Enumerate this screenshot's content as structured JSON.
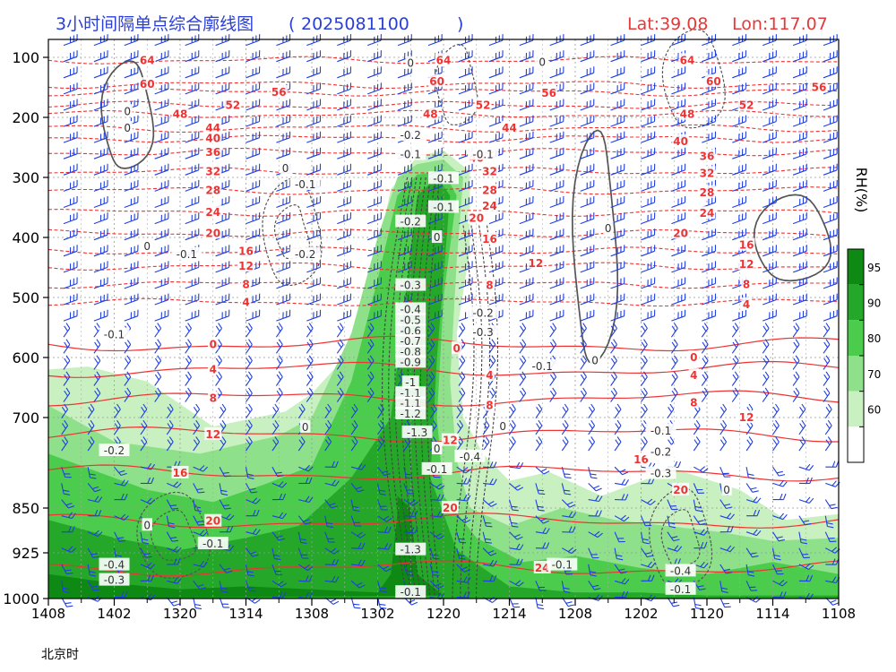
{
  "chart_data": {
    "type": "contour",
    "title": "3小时间隔单点综合廓线图",
    "run_time": "2025081100",
    "location": {
      "lat": "Lat:39.08",
      "lon": "Lon:117.07"
    },
    "xlabel": "北京时",
    "x_ticks": [
      "1408",
      "1402",
      "1320",
      "1314",
      "1308",
      "1302",
      "1220",
      "1214",
      "1208",
      "1202",
      "1120",
      "1114",
      "1108"
    ],
    "y_ticks": [
      100,
      200,
      300,
      400,
      500,
      600,
      700,
      850,
      925,
      1000
    ],
    "ylim": [
      1000,
      100
    ],
    "colorbar": {
      "label": "RH(%)",
      "levels": [
        60,
        70,
        80,
        90,
        95
      ],
      "colors": [
        "#ffffff",
        "#c8f0c0",
        "#8fe08a",
        "#4ccc4c",
        "#25a829",
        "#0e8a14"
      ]
    },
    "temperature_labels": [
      {
        "x": 1.5,
        "p": 105,
        "v": "64"
      },
      {
        "x": 1.5,
        "p": 145,
        "v": "60"
      },
      {
        "x": 3.5,
        "p": 158,
        "v": "56"
      },
      {
        "x": 2.8,
        "p": 180,
        "v": "52"
      },
      {
        "x": 2.0,
        "p": 195,
        "v": "48"
      },
      {
        "x": 2.5,
        "p": 218,
        "v": "44"
      },
      {
        "x": 2.5,
        "p": 235,
        "v": "40"
      },
      {
        "x": 2.5,
        "p": 258,
        "v": "36"
      },
      {
        "x": 2.5,
        "p": 290,
        "v": "32"
      },
      {
        "x": 2.5,
        "p": 322,
        "v": "28"
      },
      {
        "x": 2.5,
        "p": 358,
        "v": "24"
      },
      {
        "x": 2.5,
        "p": 393,
        "v": "20"
      },
      {
        "x": 3.0,
        "p": 423,
        "v": "16"
      },
      {
        "x": 3.0,
        "p": 448,
        "v": "12"
      },
      {
        "x": 3.0,
        "p": 478,
        "v": "8"
      },
      {
        "x": 3.0,
        "p": 508,
        "v": "4"
      },
      {
        "x": 2.5,
        "p": 578,
        "v": "0"
      },
      {
        "x": 2.5,
        "p": 620,
        "v": "4"
      },
      {
        "x": 2.5,
        "p": 668,
        "v": "8"
      },
      {
        "x": 2.5,
        "p": 728,
        "v": "12"
      },
      {
        "x": 2.0,
        "p": 792,
        "v": "16"
      },
      {
        "x": 2.5,
        "p": 872,
        "v": "20"
      },
      {
        "x": 7.5,
        "p": 950,
        "v": "24"
      },
      {
        "x": 6.0,
        "p": 105,
        "v": "64"
      },
      {
        "x": 5.9,
        "p": 140,
        "v": "60"
      },
      {
        "x": 5.8,
        "p": 195,
        "v": "48"
      },
      {
        "x": 6.6,
        "p": 180,
        "v": "52"
      },
      {
        "x": 6.5,
        "p": 268,
        "v": "40"
      },
      {
        "x": 6.7,
        "p": 290,
        "v": "32"
      },
      {
        "x": 6.7,
        "p": 322,
        "v": "28"
      },
      {
        "x": 6.7,
        "p": 348,
        "v": "24"
      },
      {
        "x": 6.5,
        "p": 368,
        "v": "20"
      },
      {
        "x": 6.7,
        "p": 403,
        "v": "16"
      },
      {
        "x": 7.4,
        "p": 443,
        "v": "12"
      },
      {
        "x": 6.7,
        "p": 480,
        "v": "8"
      },
      {
        "x": 6.2,
        "p": 585,
        "v": "0"
      },
      {
        "x": 6.7,
        "p": 630,
        "v": "4"
      },
      {
        "x": 6.7,
        "p": 680,
        "v": "8"
      },
      {
        "x": 6.1,
        "p": 738,
        "v": "12"
      },
      {
        "x": 6.1,
        "p": 850,
        "v": "20"
      },
      {
        "x": 7.0,
        "p": 218,
        "v": "44"
      },
      {
        "x": 7.6,
        "p": 160,
        "v": "56"
      },
      {
        "x": 9.7,
        "p": 105,
        "v": "64"
      },
      {
        "x": 10.1,
        "p": 140,
        "v": "60"
      },
      {
        "x": 10.6,
        "p": 180,
        "v": "52"
      },
      {
        "x": 9.7,
        "p": 195,
        "v": "48"
      },
      {
        "x": 9.6,
        "p": 240,
        "v": "40"
      },
      {
        "x": 10.0,
        "p": 265,
        "v": "36"
      },
      {
        "x": 10.0,
        "p": 293,
        "v": "32"
      },
      {
        "x": 10.0,
        "p": 325,
        "v": "28"
      },
      {
        "x": 10.0,
        "p": 360,
        "v": "24"
      },
      {
        "x": 9.6,
        "p": 393,
        "v": "20"
      },
      {
        "x": 10.6,
        "p": 413,
        "v": "16"
      },
      {
        "x": 10.6,
        "p": 445,
        "v": "12"
      },
      {
        "x": 10.6,
        "p": 478,
        "v": "8"
      },
      {
        "x": 10.6,
        "p": 512,
        "v": "4"
      },
      {
        "x": 9.8,
        "p": 600,
        "v": "0"
      },
      {
        "x": 9.8,
        "p": 630,
        "v": "4"
      },
      {
        "x": 9.8,
        "p": 675,
        "v": "8"
      },
      {
        "x": 10.6,
        "p": 700,
        "v": "12"
      },
      {
        "x": 9.0,
        "p": 770,
        "v": "16"
      },
      {
        "x": 9.6,
        "p": 820,
        "v": "20"
      },
      {
        "x": 11.7,
        "p": 150,
        "v": "56"
      }
    ],
    "omega_labels": [
      {
        "x": 1.2,
        "p": 190,
        "v": "0"
      },
      {
        "x": 1.2,
        "p": 218,
        "v": "0"
      },
      {
        "x": 3.6,
        "p": 285,
        "v": "0"
      },
      {
        "x": 3.9,
        "p": 312,
        "v": "-0.1"
      },
      {
        "x": 1.5,
        "p": 415,
        "v": "0"
      },
      {
        "x": 2.1,
        "p": 428,
        "v": "-0.1"
      },
      {
        "x": 3.9,
        "p": 428,
        "v": "-0.2"
      },
      {
        "x": 1.0,
        "p": 562,
        "v": "-0.1"
      },
      {
        "x": 1.0,
        "p": 755,
        "v": "-0.2"
      },
      {
        "x": 3.9,
        "p": 716,
        "v": "0"
      },
      {
        "x": 1.5,
        "p": 879,
        "v": "0"
      },
      {
        "x": 2.5,
        "p": 910,
        "v": "-0.1"
      },
      {
        "x": 1.0,
        "p": 945,
        "v": "-0.4"
      },
      {
        "x": 1.0,
        "p": 970,
        "v": "-0.3"
      },
      {
        "x": 5.5,
        "p": 110,
        "v": "0"
      },
      {
        "x": 5.5,
        "p": 230,
        "v": "-0.2"
      },
      {
        "x": 5.5,
        "p": 262,
        "v": "-0.1"
      },
      {
        "x": 5.5,
        "p": 374,
        "v": "-0.2"
      },
      {
        "x": 6.0,
        "p": 350,
        "v": "-0.1"
      },
      {
        "x": 5.9,
        "p": 400,
        "v": "0"
      },
      {
        "x": 6.6,
        "p": 262,
        "v": "-0.1"
      },
      {
        "x": 6.6,
        "p": 526,
        "v": "-0.2"
      },
      {
        "x": 6.6,
        "p": 558,
        "v": "-0.3"
      },
      {
        "x": 5.5,
        "p": 480,
        "v": "-0.3"
      },
      {
        "x": 5.5,
        "p": 520,
        "v": "-0.4"
      },
      {
        "x": 5.5,
        "p": 538,
        "v": "-0.5"
      },
      {
        "x": 5.5,
        "p": 556,
        "v": "-0.6"
      },
      {
        "x": 5.5,
        "p": 573,
        "v": "-0.7"
      },
      {
        "x": 5.5,
        "p": 591,
        "v": "-0.8"
      },
      {
        "x": 5.5,
        "p": 608,
        "v": "-0.9"
      },
      {
        "x": 5.5,
        "p": 642,
        "v": "-1"
      },
      {
        "x": 5.5,
        "p": 660,
        "v": "-1.1"
      },
      {
        "x": 5.5,
        "p": 677,
        "v": "-1.1"
      },
      {
        "x": 5.5,
        "p": 694,
        "v": "-1.2"
      },
      {
        "x": 5.6,
        "p": 725,
        "v": "-1.3"
      },
      {
        "x": 5.9,
        "p": 752,
        "v": "0"
      },
      {
        "x": 5.9,
        "p": 786,
        "v": "-0.1"
      },
      {
        "x": 6.4,
        "p": 765,
        "v": "-0.4"
      },
      {
        "x": 6.9,
        "p": 715,
        "v": "0"
      },
      {
        "x": 5.5,
        "p": 920,
        "v": "-1.3"
      },
      {
        "x": 5.5,
        "p": 990,
        "v": "-0.1"
      },
      {
        "x": 7.5,
        "p": 108,
        "v": "0"
      },
      {
        "x": 7.5,
        "p": 615,
        "v": "-0.1"
      },
      {
        "x": 8.3,
        "p": 605,
        "v": "0"
      },
      {
        "x": 8.5,
        "p": 385,
        "v": "0"
      },
      {
        "x": 7.8,
        "p": 945,
        "v": "-0.1"
      },
      {
        "x": 9.3,
        "p": 722,
        "v": "-0.1"
      },
      {
        "x": 9.3,
        "p": 757,
        "v": "-0.2"
      },
      {
        "x": 9.3,
        "p": 793,
        "v": "-0.3"
      },
      {
        "x": 10.3,
        "p": 820,
        "v": "0"
      },
      {
        "x": 9.6,
        "p": 955,
        "v": "-0.4"
      },
      {
        "x": 9.6,
        "p": 985,
        "v": "-0.1"
      },
      {
        "x": 6.0,
        "p": 302,
        "v": "-0.1"
      }
    ],
    "rh_regions": [
      {
        "level": 60,
        "poly": [
          [
            0,
            620
          ],
          [
            0.6,
            615
          ],
          [
            1.5,
            640
          ],
          [
            2.5,
            715
          ],
          [
            3.6,
            690
          ],
          [
            4.0,
            660
          ],
          [
            4.5,
            600
          ],
          [
            4.9,
            470
          ],
          [
            5.2,
            320
          ],
          [
            5.6,
            265
          ],
          [
            6.0,
            255
          ],
          [
            6.4,
            290
          ],
          [
            6.4,
            420
          ],
          [
            6.2,
            560
          ],
          [
            6.3,
            700
          ],
          [
            6.6,
            760
          ],
          [
            7.0,
            805
          ],
          [
            7.6,
            790
          ],
          [
            8.4,
            830
          ],
          [
            9.5,
            785
          ],
          [
            10.5,
            820
          ],
          [
            11.2,
            870
          ],
          [
            12.0,
            860
          ],
          [
            12.0,
            1000
          ],
          [
            0,
            1000
          ]
        ]
      },
      {
        "level": 70,
        "poly": [
          [
            0,
            680
          ],
          [
            1.0,
            740
          ],
          [
            2.3,
            760
          ],
          [
            3.5,
            730
          ],
          [
            4.0,
            700
          ],
          [
            4.6,
            560
          ],
          [
            5.0,
            400
          ],
          [
            5.3,
            300
          ],
          [
            5.6,
            278
          ],
          [
            6.0,
            270
          ],
          [
            6.3,
            300
          ],
          [
            6.2,
            440
          ],
          [
            6.1,
            640
          ],
          [
            6.2,
            770
          ],
          [
            6.4,
            850
          ],
          [
            7.0,
            880
          ],
          [
            7.8,
            850
          ],
          [
            8.6,
            870
          ],
          [
            9.4,
            880
          ],
          [
            10.2,
            890
          ],
          [
            11.0,
            905
          ],
          [
            12.0,
            900
          ],
          [
            12.0,
            1000
          ],
          [
            0,
            1000
          ]
        ]
      },
      {
        "level": 80,
        "poly": [
          [
            0,
            760
          ],
          [
            1.5,
            820
          ],
          [
            2.5,
            840
          ],
          [
            3.3,
            810
          ],
          [
            4.0,
            780
          ],
          [
            4.6,
            640
          ],
          [
            5.0,
            470
          ],
          [
            5.3,
            330
          ],
          [
            5.6,
            295
          ],
          [
            6.0,
            290
          ],
          [
            6.2,
            330
          ],
          [
            6.0,
            500
          ],
          [
            5.9,
            700
          ],
          [
            6.0,
            830
          ],
          [
            6.5,
            900
          ],
          [
            7.2,
            940
          ],
          [
            8.0,
            930
          ],
          [
            9.0,
            950
          ],
          [
            10.0,
            960
          ],
          [
            11.0,
            940
          ],
          [
            12.0,
            960
          ],
          [
            12.0,
            1000
          ],
          [
            0,
            1000
          ]
        ]
      },
      {
        "level": 90,
        "poly": [
          [
            0,
            870
          ],
          [
            1.0,
            900
          ],
          [
            2.0,
            920
          ],
          [
            3.0,
            900
          ],
          [
            3.8,
            880
          ],
          [
            4.6,
            800
          ],
          [
            5.2,
            700
          ],
          [
            5.4,
            520
          ],
          [
            5.6,
            330
          ],
          [
            5.9,
            300
          ],
          [
            6.1,
            330
          ],
          [
            5.9,
            600
          ],
          [
            5.8,
            800
          ],
          [
            6.2,
            920
          ],
          [
            7.0,
            980
          ],
          [
            8.0,
            990
          ],
          [
            9.0,
            990
          ],
          [
            10.0,
            995
          ],
          [
            12.0,
            995
          ],
          [
            12.0,
            1000
          ],
          [
            0,
            1000
          ]
        ]
      },
      {
        "level": 95,
        "poly": [
          [
            0,
            960
          ],
          [
            1.0,
            975
          ],
          [
            2.0,
            985
          ],
          [
            3.0,
            980
          ],
          [
            4.0,
            985
          ],
          [
            5.0,
            990
          ],
          [
            5.2,
            960
          ],
          [
            5.3,
            860
          ],
          [
            5.3,
            830
          ],
          [
            5.5,
            850
          ],
          [
            5.6,
            960
          ],
          [
            6.0,
            995
          ],
          [
            0,
            1000
          ]
        ]
      }
    ]
  }
}
